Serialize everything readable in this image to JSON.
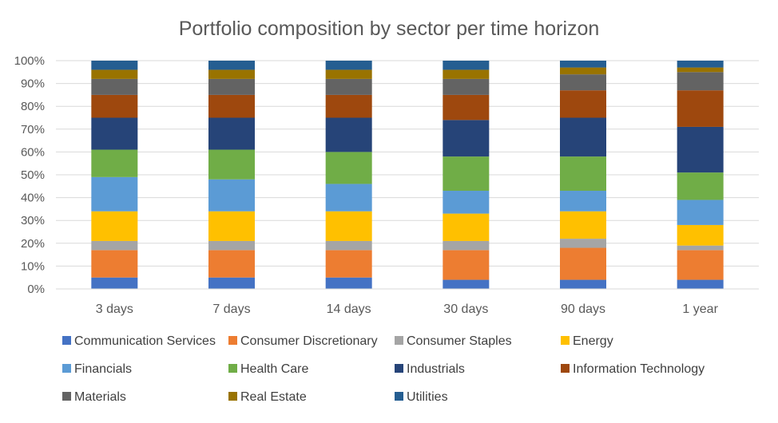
{
  "chart_data": {
    "type": "bar",
    "stacked": true,
    "percent": true,
    "title": "Portfolio composition by sector per time horizon",
    "xlabel": "",
    "ylabel": "",
    "ylim": [
      0,
      100
    ],
    "y_ticks": [
      "0%",
      "10%",
      "20%",
      "30%",
      "40%",
      "50%",
      "60%",
      "70%",
      "80%",
      "90%",
      "100%"
    ],
    "grid": true,
    "legend_position": "bottom",
    "categories": [
      "3 days",
      "7 days",
      "14 days",
      "30 days",
      "90 days",
      "1 year"
    ],
    "series": [
      {
        "name": "Communication Services",
        "color": "#4472C4",
        "values": [
          5,
          5,
          5,
          4,
          4,
          4
        ]
      },
      {
        "name": "Consumer Discretionary",
        "color": "#ED7D31",
        "values": [
          12,
          12,
          12,
          13,
          14,
          13
        ]
      },
      {
        "name": "Consumer Staples",
        "color": "#A5A5A5",
        "values": [
          4,
          4,
          4,
          4,
          4,
          2
        ]
      },
      {
        "name": "Energy",
        "color": "#FFC000",
        "values": [
          13,
          13,
          13,
          12,
          12,
          9
        ]
      },
      {
        "name": "Financials",
        "color": "#5B9BD5",
        "values": [
          15,
          14,
          12,
          10,
          9,
          11
        ]
      },
      {
        "name": "Health Care",
        "color": "#70AD47",
        "values": [
          12,
          13,
          14,
          15,
          15,
          12
        ]
      },
      {
        "name": "Industrials",
        "color": "#264478",
        "values": [
          14,
          14,
          15,
          16,
          17,
          20
        ]
      },
      {
        "name": "Information Technology",
        "color": "#9E480E",
        "values": [
          10,
          10,
          10,
          11,
          12,
          16
        ]
      },
      {
        "name": "Materials",
        "color": "#636363",
        "values": [
          7,
          7,
          7,
          7,
          7,
          8
        ]
      },
      {
        "name": "Real Estate",
        "color": "#997300",
        "values": [
          4,
          4,
          4,
          4,
          3,
          2
        ]
      },
      {
        "name": "Utilities",
        "color": "#255E91",
        "values": [
          4,
          4,
          4,
          4,
          3,
          3
        ]
      }
    ]
  }
}
